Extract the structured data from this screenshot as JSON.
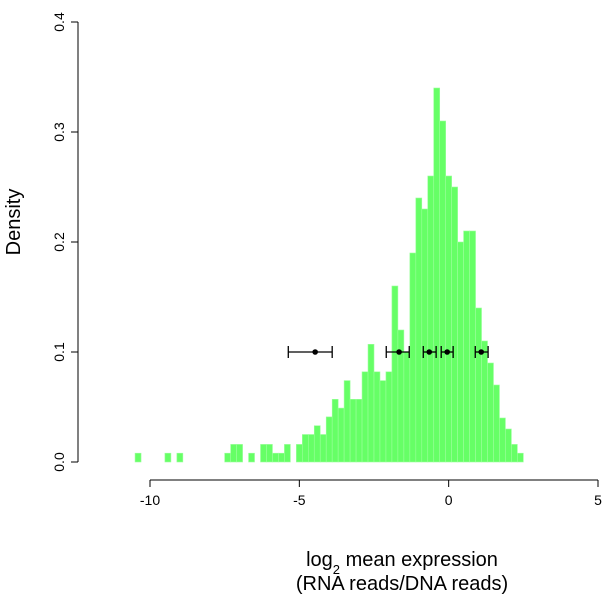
{
  "chart_data": {
    "type": "histogram",
    "ylabel": "Density",
    "xlabel_parts": [
      "log",
      "2",
      " mean expression"
    ],
    "xlabel_line2": "(RNA reads/DNA reads)",
    "bins": [
      -10.5,
      -10.3,
      -10.1,
      -9.9,
      -9.7,
      -9.5,
      -9.3,
      -9.1,
      -8.9,
      -8.7,
      -8.5,
      -8.3,
      -8.1,
      -7.9,
      -7.7,
      -7.5,
      -7.3,
      -7.1,
      -6.9,
      -6.7,
      -6.5,
      -6.3,
      -6.1,
      -5.9,
      -5.7,
      -5.5,
      -5.3,
      -5.1,
      -4.9,
      -4.7,
      -4.5,
      -4.3,
      -4.1,
      -3.9,
      -3.7,
      -3.5,
      -3.3,
      -3.1,
      -2.9,
      -2.7,
      -2.5,
      -2.3,
      -2.1,
      -1.9,
      -1.7,
      -1.5,
      -1.3,
      -1.1,
      -0.9,
      -0.7,
      -0.5,
      -0.3,
      -0.1,
      0.1,
      0.3,
      0.5,
      0.7,
      0.9,
      1.1,
      1.3,
      1.5,
      1.7,
      1.9,
      2.1,
      2.3,
      2.5
    ],
    "values": [
      0.008,
      0,
      0,
      0,
      0,
      0.008,
      0,
      0.008,
      0,
      0,
      0,
      0,
      0,
      0,
      0,
      0.008,
      0.016,
      0.016,
      0,
      0.008,
      0,
      0.016,
      0.016,
      0.008,
      0.008,
      0.016,
      0,
      0.016,
      0.025,
      0.025,
      0.033,
      0.025,
      0.041,
      0.057,
      0.049,
      0.074,
      0.057,
      0.057,
      0.082,
      0.107,
      0.082,
      0.074,
      0.082,
      0.16,
      0.12,
      0.1,
      0.19,
      0.24,
      0.23,
      0.26,
      0.34,
      0.31,
      0.26,
      0.25,
      0.2,
      0.21,
      0.21,
      0.14,
      0.11,
      0.09,
      0.07,
      0.04,
      0.03,
      0.016,
      0.008
    ],
    "color": "#66ff66",
    "errorbars": {
      "x": [
        -4.47,
        -1.66,
        -0.65,
        -0.05,
        1.09
      ],
      "y": [
        0.1,
        0.1,
        0.1,
        0.1,
        0.1
      ],
      "xlow": [
        -5.37,
        -2.09,
        -0.85,
        -0.25,
        0.89
      ],
      "xhigh": [
        -3.9,
        -1.32,
        -0.42,
        0.15,
        1.32
      ],
      "color": "#000000"
    },
    "xlim": [
      -10,
      5
    ],
    "xticks": [
      -10,
      -5,
      0,
      5
    ],
    "ylim": [
      0,
      0.4
    ],
    "yticks": [
      {
        "value": 0,
        "label": "0.0"
      },
      0.1,
      0.2,
      0.3,
      0.4
    ]
  }
}
